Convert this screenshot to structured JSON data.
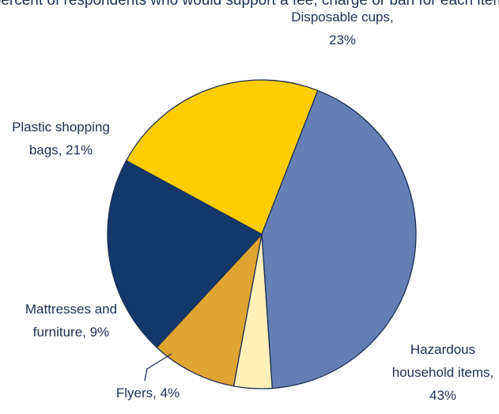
{
  "chart_data": {
    "type": "pie",
    "title_partial": "...percent of respondents who would support a fee, charge or ban...",
    "categories": [
      "Disposable cups",
      "Hazardous household items",
      "Flyers",
      "Mattresses and furniture",
      "Plastic shopping bags"
    ],
    "values": [
      23,
      43,
      4,
      9,
      21
    ],
    "unit": "%",
    "colors": [
      "#ffcc00",
      "#647fb4",
      "#fff0b8",
      "#e0a430",
      "#14386a"
    ],
    "labels": [
      {
        "lines": [
          "Disposable cups,",
          "23%"
        ]
      },
      {
        "lines": [
          "Hazardous",
          "household items,",
          "43%"
        ]
      },
      {
        "lines": [
          "Flyers, 4%"
        ]
      },
      {
        "lines": [
          "Mattresses and",
          "furniture, 9%"
        ]
      },
      {
        "lines": [
          "Plastic shopping",
          "bags, 21%"
        ]
      }
    ],
    "legend": "none"
  },
  "meta": {
    "title_visible": "percent of respondents who would support a fee, charge or ban for each item"
  }
}
